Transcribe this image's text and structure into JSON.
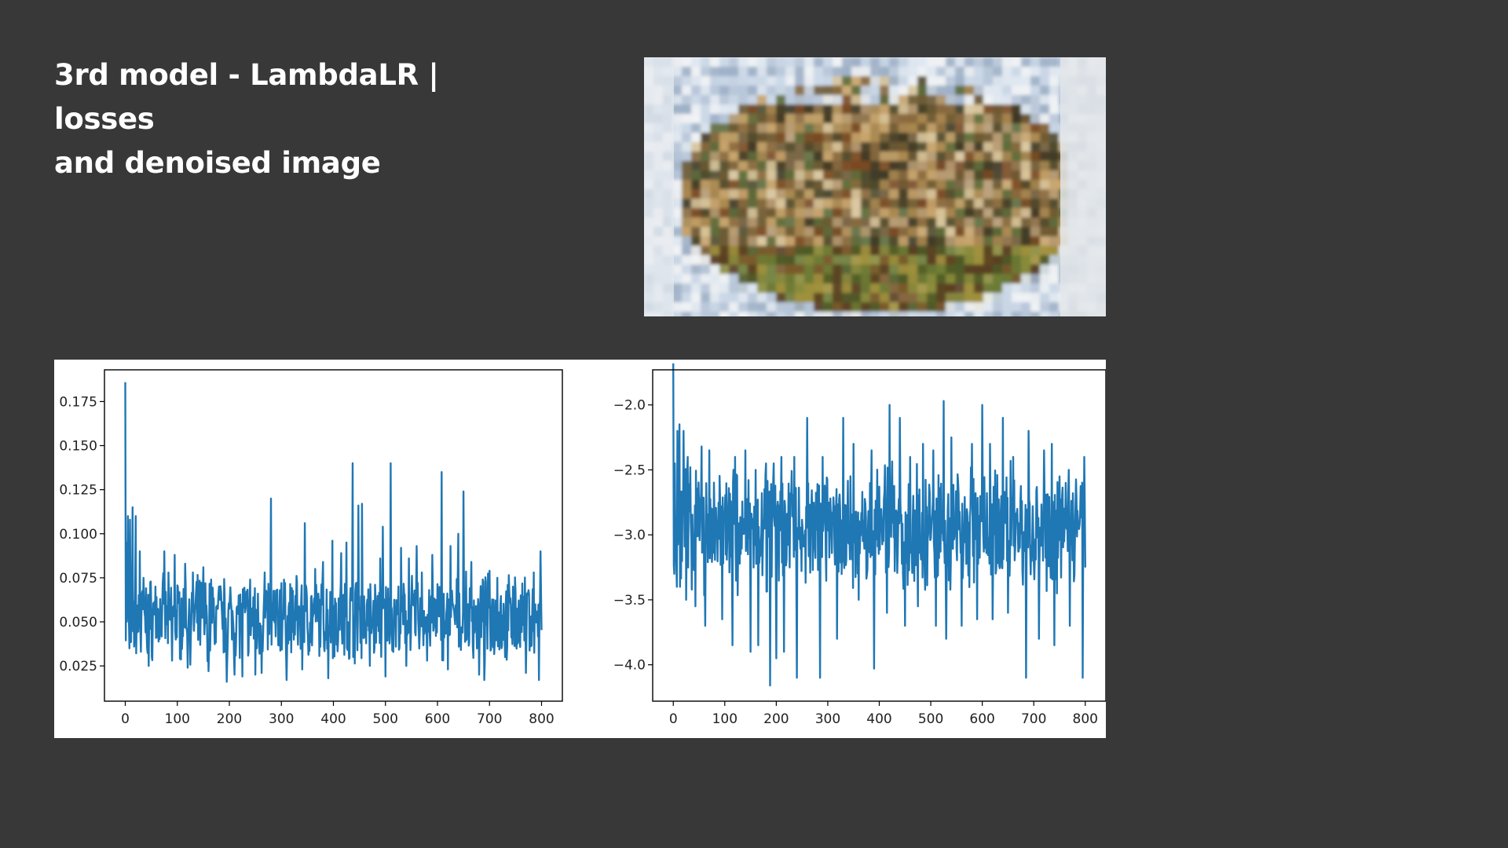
{
  "slide": {
    "title_line1": "3rd model - LambdaLR | losses",
    "title_line2": "and denoised image"
  },
  "image": {
    "description_icon": "denoised-image"
  },
  "colors": {
    "background": "#383838",
    "line": "#1f77b4",
    "panel": "#ffffff"
  },
  "chart_data": [
    {
      "type": "line",
      "title": "",
      "xlabel": "",
      "ylabel": "",
      "xlim": [
        -40,
        840
      ],
      "ylim": [
        0.005,
        0.193
      ],
      "xticks": [
        0,
        100,
        200,
        300,
        400,
        500,
        600,
        700,
        800
      ],
      "xtick_labels": [
        "0",
        "100",
        "200",
        "300",
        "400",
        "500",
        "600",
        "700",
        "800"
      ],
      "yticks": [
        0.025,
        0.05,
        0.075,
        0.1,
        0.125,
        0.15,
        0.175
      ],
      "ytick_labels": [
        "0.025",
        "0.050",
        "0.075",
        "0.100",
        "0.125",
        "0.150",
        "0.175"
      ],
      "grid": false,
      "series": [
        {
          "name": "",
          "sampling": {
            "start": 0,
            "end": 800,
            "n": 801,
            "base": 0.052,
            "spread": 0.028,
            "floor": 0.016,
            "seed": 7
          },
          "peaks": [
            [
              0,
              0.186
            ],
            [
              2,
              0.095
            ],
            [
              5,
              0.11
            ],
            [
              9,
              0.108
            ],
            [
              14,
              0.115
            ],
            [
              20,
              0.11
            ],
            [
              28,
              0.09
            ],
            [
              35,
              0.075
            ],
            [
              45,
              0.06
            ],
            [
              58,
              0.07
            ],
            [
              75,
              0.09
            ],
            [
              95,
              0.088
            ],
            [
              115,
              0.083
            ],
            [
              130,
              0.078
            ],
            [
              150,
              0.081
            ],
            [
              165,
              0.074
            ],
            [
              180,
              0.07
            ],
            [
              210,
              0.079
            ],
            [
              225,
              0.072
            ],
            [
              240,
              0.074
            ],
            [
              255,
              0.066
            ],
            [
              268,
              0.078
            ],
            [
              280,
              0.12
            ],
            [
              300,
              0.072
            ],
            [
              330,
              0.073
            ],
            [
              345,
              0.106
            ],
            [
              365,
              0.08
            ],
            [
              380,
              0.084
            ],
            [
              398,
              0.096
            ],
            [
              415,
              0.089
            ],
            [
              425,
              0.095
            ],
            [
              437,
              0.14
            ],
            [
              448,
              0.116
            ],
            [
              455,
              0.117
            ],
            [
              470,
              0.09
            ],
            [
              490,
              0.086
            ],
            [
              495,
              0.104
            ],
            [
              510,
              0.14
            ],
            [
              530,
              0.092
            ],
            [
              545,
              0.086
            ],
            [
              560,
              0.093
            ],
            [
              570,
              0.078
            ],
            [
              590,
              0.088
            ],
            [
              608,
              0.135
            ],
            [
              625,
              0.093
            ],
            [
              640,
              0.1
            ],
            [
              650,
              0.124
            ],
            [
              665,
              0.084
            ],
            [
              680,
              0.082
            ],
            [
              700,
              0.079
            ],
            [
              715,
              0.075
            ],
            [
              730,
              0.083
            ],
            [
              745,
              0.07
            ],
            [
              760,
              0.065
            ],
            [
              775,
              0.068
            ],
            [
              785,
              0.078
            ],
            [
              798,
              0.09
            ]
          ],
          "troughs": [
            [
              8,
              0.035
            ],
            [
              30,
              0.033
            ],
            [
              45,
              0.025
            ],
            [
              90,
              0.028
            ],
            [
              120,
              0.024
            ],
            [
              160,
              0.022
            ],
            [
              195,
              0.016
            ],
            [
              210,
              0.02
            ],
            [
              225,
              0.019
            ],
            [
              250,
              0.02
            ],
            [
              262,
              0.021
            ],
            [
              310,
              0.017
            ],
            [
              340,
              0.023
            ],
            [
              390,
              0.018
            ],
            [
              430,
              0.029
            ],
            [
              470,
              0.025
            ],
            [
              500,
              0.019
            ],
            [
              540,
              0.025
            ],
            [
              580,
              0.028
            ],
            [
              620,
              0.023
            ],
            [
              680,
              0.02
            ],
            [
              690,
              0.017
            ],
            [
              730,
              0.03
            ],
            [
              770,
              0.021
            ],
            [
              795,
              0.017
            ]
          ]
        }
      ]
    },
    {
      "type": "line",
      "title": "",
      "xlabel": "",
      "ylabel": "",
      "xlim": [
        -40,
        840
      ],
      "ylim": [
        -4.28,
        -1.73
      ],
      "xticks": [
        0,
        100,
        200,
        300,
        400,
        500,
        600,
        700,
        800
      ],
      "xtick_labels": [
        "0",
        "100",
        "200",
        "300",
        "400",
        "500",
        "600",
        "700",
        "800"
      ],
      "yticks": [
        -2.0,
        -2.5,
        -3.0,
        -3.5,
        -4.0
      ],
      "ytick_labels": [
        "−2.0",
        "−2.5",
        "−3.0",
        "−3.5",
        "−4.0"
      ],
      "grid": false,
      "series": [
        {
          "name": "",
          "sampling": {
            "start": 0,
            "end": 800,
            "n": 801,
            "base": -2.95,
            "spread": 0.55,
            "floor": -4.16,
            "seed": 11
          },
          "peaks": [
            [
              0,
              -1.68
            ],
            [
              3,
              -2.45
            ],
            [
              8,
              -2.2
            ],
            [
              12,
              -2.15
            ],
            [
              20,
              -2.2
            ],
            [
              28,
              -2.4
            ],
            [
              55,
              -2.32
            ],
            [
              70,
              -2.35
            ],
            [
              95,
              -2.25
            ],
            [
              120,
              -2.4
            ],
            [
              140,
              -2.35
            ],
            [
              160,
              -2.5
            ],
            [
              180,
              -2.45
            ],
            [
              195,
              -2.45
            ],
            [
              210,
              -2.4
            ],
            [
              235,
              -2.4
            ],
            [
              260,
              -2.1
            ],
            [
              290,
              -2.4
            ],
            [
              330,
              -2.1
            ],
            [
              350,
              -2.3
            ],
            [
              385,
              -2.35
            ],
            [
              420,
              -2.0
            ],
            [
              440,
              -2.1
            ],
            [
              460,
              -2.4
            ],
            [
              485,
              -2.3
            ],
            [
              505,
              -2.35
            ],
            [
              525,
              -1.97
            ],
            [
              540,
              -2.25
            ],
            [
              560,
              -2.35
            ],
            [
              580,
              -2.3
            ],
            [
              600,
              -2.0
            ],
            [
              615,
              -2.3
            ],
            [
              640,
              -2.1
            ],
            [
              660,
              -2.4
            ],
            [
              690,
              -2.2
            ],
            [
              720,
              -2.35
            ],
            [
              735,
              -2.3
            ],
            [
              750,
              -2.55
            ],
            [
              768,
              -2.5
            ],
            [
              798,
              -2.4
            ]
          ],
          "troughs": [
            [
              2,
              -3.3
            ],
            [
              7,
              -3.4
            ],
            [
              25,
              -3.5
            ],
            [
              43,
              -3.55
            ],
            [
              62,
              -3.7
            ],
            [
              95,
              -3.65
            ],
            [
              115,
              -3.85
            ],
            [
              150,
              -3.9
            ],
            [
              165,
              -3.85
            ],
            [
              188,
              -4.16
            ],
            [
              200,
              -3.95
            ],
            [
              215,
              -3.9
            ],
            [
              240,
              -4.1
            ],
            [
              285,
              -4.1
            ],
            [
              318,
              -3.8
            ],
            [
              360,
              -3.5
            ],
            [
              390,
              -4.03
            ],
            [
              415,
              -3.6
            ],
            [
              450,
              -3.7
            ],
            [
              475,
              -3.55
            ],
            [
              510,
              -3.7
            ],
            [
              530,
              -3.8
            ],
            [
              560,
              -3.7
            ],
            [
              590,
              -3.65
            ],
            [
              620,
              -3.65
            ],
            [
              650,
              -3.6
            ],
            [
              685,
              -4.1
            ],
            [
              710,
              -3.8
            ],
            [
              740,
              -3.85
            ],
            [
              770,
              -3.7
            ],
            [
              795,
              -4.1
            ]
          ]
        }
      ]
    }
  ]
}
